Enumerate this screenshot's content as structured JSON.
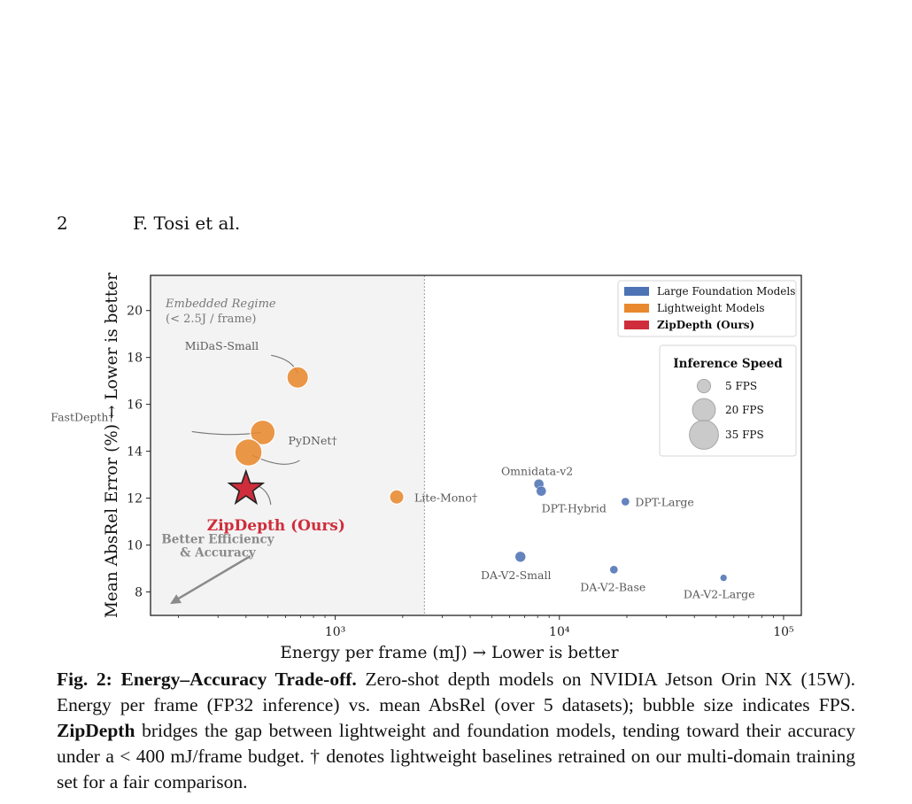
{
  "header": {
    "page_number": "2",
    "authors": "F. Tosi et al."
  },
  "chart_data": {
    "type": "scatter",
    "xlabel": "Energy per frame (mJ) → Lower is better",
    "ylabel": "Mean AbsRel Error (%) → Lower is better",
    "x_scale": "log",
    "xlim": [
      150,
      120000
    ],
    "ylim": [
      7,
      21.5
    ],
    "x_ticks": [
      {
        "value": 1000,
        "label": "10³"
      },
      {
        "value": 10000,
        "label": "10⁴"
      },
      {
        "value": 100000,
        "label": "10⁵"
      }
    ],
    "y_ticks": [
      8,
      10,
      12,
      14,
      16,
      18,
      20
    ],
    "region": {
      "x_max": 2500,
      "label_line1": "Embedded Regime",
      "label_line2": "(< 2.5J / frame)"
    },
    "legend": [
      {
        "label": "Large Foundation Models",
        "color": "#4e73b5"
      },
      {
        "label": "Lightweight Models",
        "color": "#e8892f"
      },
      {
        "label": "ZipDepth (Ours)",
        "color": "#cf2d3b"
      }
    ],
    "size_legend": {
      "title": "Inference Speed",
      "items": [
        {
          "fps": 5,
          "label": "5 FPS"
        },
        {
          "fps": 20,
          "label": "20 FPS"
        },
        {
          "fps": 35,
          "label": "35 FPS"
        }
      ]
    },
    "series": [
      {
        "name": "Large Foundation Models",
        "color": "#4e73b5",
        "points": [
          {
            "label": "Omnidata-v2",
            "x": 8100,
            "y": 12.6,
            "fps": 2
          },
          {
            "label": "DPT-Hybrid",
            "x": 8300,
            "y": 12.3,
            "fps": 2
          },
          {
            "label": "DPT-Large",
            "x": 19700,
            "y": 11.85,
            "fps": 1
          },
          {
            "label": "DA-V2-Small",
            "x": 6700,
            "y": 9.5,
            "fps": 2.5
          },
          {
            "label": "DA-V2-Base",
            "x": 17500,
            "y": 8.95,
            "fps": 1
          },
          {
            "label": "DA-V2-Large",
            "x": 54000,
            "y": 8.6,
            "fps": 0.5
          }
        ]
      },
      {
        "name": "Lightweight Models",
        "color": "#e8892f",
        "points": [
          {
            "label": "MiDaS-Small",
            "x": 680,
            "y": 17.15,
            "fps": 17
          },
          {
            "label": "FastDepth†",
            "x": 475,
            "y": 14.8,
            "fps": 24
          },
          {
            "label": "PyDNet†",
            "x": 410,
            "y": 13.95,
            "fps": 30
          },
          {
            "label": "Lite-Mono†",
            "x": 1880,
            "y": 12.05,
            "fps": 6
          }
        ]
      },
      {
        "name": "ZipDepth (Ours)",
        "color": "#cf2d3b",
        "points": [
          {
            "label": "ZipDepth (Ours)",
            "x": 400,
            "y": 12.4
          }
        ]
      }
    ],
    "annotation_line1": "Better Efficiency",
    "annotation_line2": "& Accuracy"
  },
  "caption": {
    "label": "Fig. 2:",
    "title": "Energy–Accuracy Trade-off.",
    "text1": " Zero-shot depth models on NVIDIA Jetson Orin NX (15W). Energy per frame (FP32 inference) vs. mean AbsRel (over 5 datasets); bubble size indicates FPS. ",
    "method": "ZipDepth",
    "text2": " bridges the gap between lightweight and foundation models, tending toward their accuracy under a < 400 mJ/frame budget. † denotes lightweight baselines retrained on our multi-domain training set for a fair comparison."
  }
}
